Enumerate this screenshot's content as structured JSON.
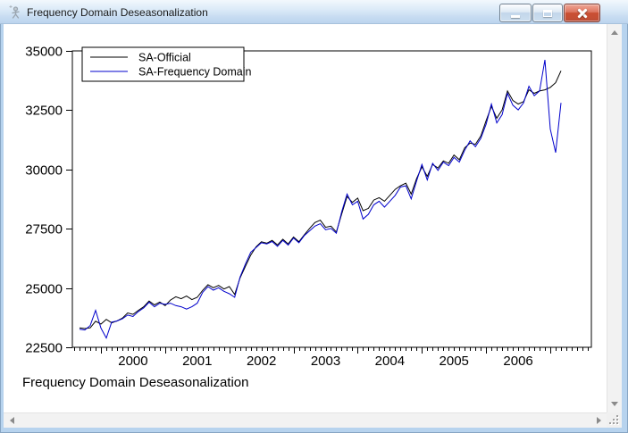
{
  "titlebar": {
    "title": "Frequency Domain Deseasonalization",
    "icon": "eviews-graph-object-icon",
    "buttons": [
      {
        "id": "minimize",
        "icon": "minimize-icon"
      },
      {
        "id": "maximize",
        "icon": "maximize-icon"
      },
      {
        "id": "close",
        "icon": "close-icon"
      }
    ]
  },
  "footer": {
    "text": "Frequency Domain Deseasonalization"
  },
  "colors": {
    "series_official": "#000000",
    "series_frequency_domain": "#0000cc",
    "window_border": "#b7d3ee",
    "titlebar_gradient_top": "#f2f8fd",
    "titlebar_gradient_bottom": "#bcd4ee",
    "close_button": "#c44f34",
    "scrollbar_track": "#f2f2f2"
  },
  "chart_data": {
    "type": "line",
    "title": "",
    "footer": "Frequency Domain Deseasonalization",
    "frequency": "monthly",
    "x_start": "1999M09",
    "x_end": "2007M03",
    "x_tick_labels": [
      "2000",
      "2001",
      "2002",
      "2003",
      "2004",
      "2005",
      "2006"
    ],
    "ylim": [
      22500,
      35000
    ],
    "yticks": [
      22500,
      25000,
      27500,
      30000,
      32500,
      35000
    ],
    "grid": "off",
    "legend_position": "top-left",
    "series": [
      {
        "name": "SA-Official",
        "color": "#000000",
        "values": [
          23320,
          23290,
          23320,
          23600,
          23480,
          23680,
          23530,
          23610,
          23730,
          23950,
          23890,
          24060,
          24210,
          24450,
          24290,
          24410,
          24260,
          24490,
          24630,
          24550,
          24660,
          24510,
          24610,
          24900,
          25140,
          25010,
          25110,
          24960,
          25060,
          24730,
          25420,
          25910,
          26390,
          26740,
          26950,
          26890,
          27010,
          26820,
          27060,
          26860,
          27150,
          26950,
          27240,
          27510,
          27760,
          27860,
          27560,
          27610,
          27360,
          28120,
          28860,
          28610,
          28790,
          28260,
          28360,
          28710,
          28810,
          28660,
          28910,
          29160,
          29310,
          29420,
          28960,
          29610,
          30110,
          29710,
          30210,
          30060,
          30360,
          30260,
          30610,
          30410,
          30910,
          31110,
          31060,
          31410,
          32060,
          32660,
          32160,
          32510,
          33310,
          32910,
          32760,
          32860,
          33360,
          33210,
          33310,
          33360,
          33460,
          33660,
          34160
        ]
      },
      {
        "name": "SA-Frequency Domain",
        "color": "#0000cc",
        "values": [
          23260,
          23230,
          23420,
          24060,
          23310,
          22890,
          23560,
          23610,
          23700,
          23860,
          23800,
          24010,
          24160,
          24400,
          24210,
          24360,
          24310,
          24360,
          24260,
          24210,
          24110,
          24210,
          24360,
          24810,
          25060,
          24910,
          25010,
          24860,
          24760,
          24610,
          25460,
          26010,
          26510,
          26710,
          26910,
          26860,
          26960,
          26760,
          27010,
          26810,
          27110,
          26910,
          27210,
          27410,
          27610,
          27710,
          27460,
          27510,
          27310,
          28210,
          28960,
          28510,
          28660,
          27910,
          28110,
          28510,
          28660,
          28410,
          28660,
          28910,
          29260,
          29310,
          28760,
          29510,
          30210,
          29560,
          30260,
          29960,
          30310,
          30160,
          30510,
          30310,
          30810,
          31210,
          30960,
          31310,
          31910,
          32760,
          31960,
          32310,
          33210,
          32710,
          32510,
          32810,
          33510,
          33110,
          33310,
          34620,
          31700,
          30710,
          32810
        ]
      }
    ]
  }
}
